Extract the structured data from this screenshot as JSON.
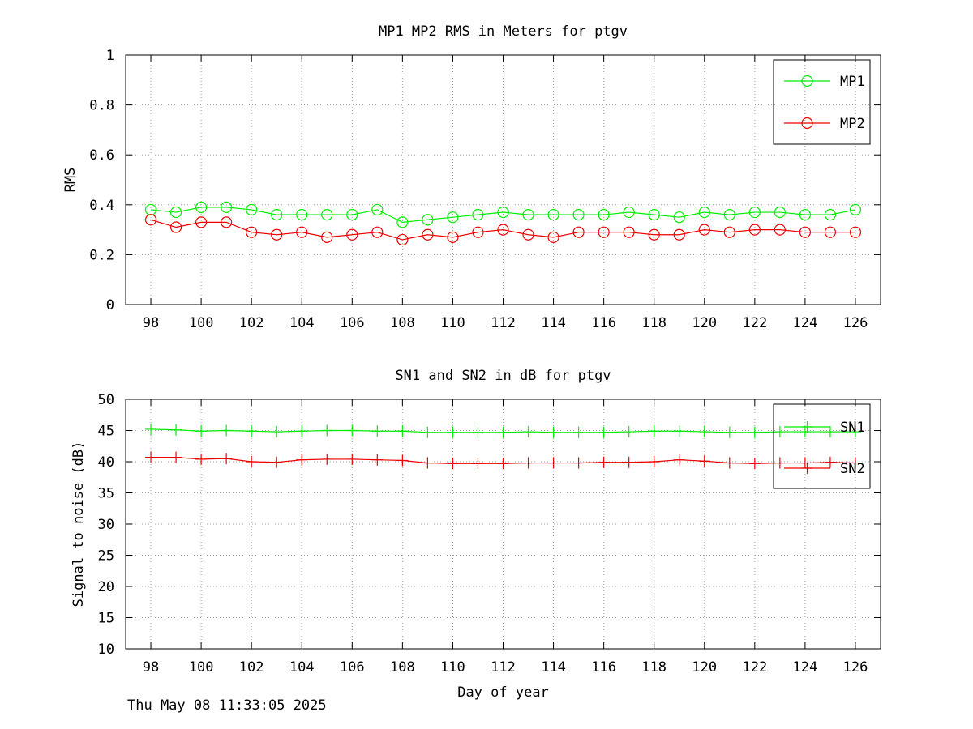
{
  "timestamp": "Thu May 08 11:33:05 2025",
  "colors": {
    "series1": "#00ee00",
    "series2": "#ee0000",
    "grid": "#a0a0a0",
    "axis": "#000000"
  },
  "chart_data": [
    {
      "type": "line",
      "marker": "circle",
      "title": "MP1 MP2 RMS in Meters for ptgv",
      "xlabel": "",
      "ylabel": "RMS",
      "xlim": [
        97,
        127
      ],
      "ylim": [
        0,
        1
      ],
      "xticks": [
        98,
        100,
        102,
        104,
        106,
        108,
        110,
        112,
        114,
        116,
        118,
        120,
        122,
        124,
        126
      ],
      "yticks": [
        0,
        0.2,
        0.4,
        0.6,
        0.8,
        1
      ],
      "ytick_labels": [
        "0",
        "0.2",
        "0.4",
        "0.6",
        "0.8",
        "1"
      ],
      "grid": true,
      "legend_position": "top-right",
      "x": [
        98,
        99,
        100,
        101,
        102,
        103,
        104,
        105,
        106,
        107,
        108,
        109,
        110,
        111,
        112,
        113,
        114,
        115,
        116,
        117,
        118,
        119,
        120,
        121,
        122,
        123,
        124,
        125,
        126
      ],
      "series": [
        {
          "name": "MP1",
          "color": "#00ee00",
          "values": [
            0.38,
            0.37,
            0.39,
            0.39,
            0.38,
            0.36,
            0.36,
            0.36,
            0.36,
            0.38,
            0.33,
            0.34,
            0.35,
            0.36,
            0.37,
            0.36,
            0.36,
            0.36,
            0.36,
            0.37,
            0.36,
            0.35,
            0.37,
            0.36,
            0.37,
            0.37,
            0.36,
            0.36,
            0.38
          ]
        },
        {
          "name": "MP2",
          "color": "#ee0000",
          "values": [
            0.34,
            0.31,
            0.33,
            0.33,
            0.29,
            0.28,
            0.29,
            0.27,
            0.28,
            0.29,
            0.26,
            0.28,
            0.27,
            0.29,
            0.3,
            0.28,
            0.27,
            0.29,
            0.29,
            0.29,
            0.28,
            0.28,
            0.3,
            0.29,
            0.3,
            0.3,
            0.29,
            0.29,
            0.29
          ]
        }
      ]
    },
    {
      "type": "line",
      "marker": "plus",
      "title": "SN1 and SN2 in dB for ptgv",
      "xlabel": "Day of year",
      "ylabel": "Signal to noise (dB)",
      "xlim": [
        97,
        127
      ],
      "ylim": [
        10,
        50
      ],
      "xticks": [
        98,
        100,
        102,
        104,
        106,
        108,
        110,
        112,
        114,
        116,
        118,
        120,
        122,
        124,
        126
      ],
      "yticks": [
        10,
        15,
        20,
        25,
        30,
        35,
        40,
        45,
        50
      ],
      "ytick_labels": [
        "10",
        "15",
        "20",
        "25",
        "30",
        "35",
        "40",
        "45",
        "50"
      ],
      "grid": true,
      "legend_position": "top-right",
      "x": [
        98,
        99,
        100,
        101,
        102,
        103,
        104,
        105,
        106,
        107,
        108,
        109,
        110,
        111,
        112,
        113,
        114,
        115,
        116,
        117,
        118,
        119,
        120,
        121,
        122,
        123,
        124,
        125,
        126
      ],
      "series": [
        {
          "name": "SN1",
          "color": "#00ee00",
          "values": [
            45.2,
            45.1,
            44.9,
            45.0,
            44.9,
            44.8,
            44.9,
            45.0,
            45.0,
            44.9,
            44.9,
            44.7,
            44.7,
            44.7,
            44.7,
            44.8,
            44.7,
            44.7,
            44.7,
            44.8,
            44.9,
            44.9,
            44.8,
            44.7,
            44.7,
            44.8,
            44.8,
            44.8,
            44.8
          ]
        },
        {
          "name": "SN2",
          "color": "#ee0000",
          "values": [
            40.7,
            40.7,
            40.4,
            40.5,
            40.0,
            39.9,
            40.3,
            40.4,
            40.4,
            40.3,
            40.2,
            39.8,
            39.7,
            39.7,
            39.7,
            39.8,
            39.8,
            39.8,
            39.9,
            39.9,
            40.0,
            40.3,
            40.1,
            39.8,
            39.7,
            39.8,
            39.8,
            39.9,
            39.8
          ]
        }
      ]
    }
  ]
}
